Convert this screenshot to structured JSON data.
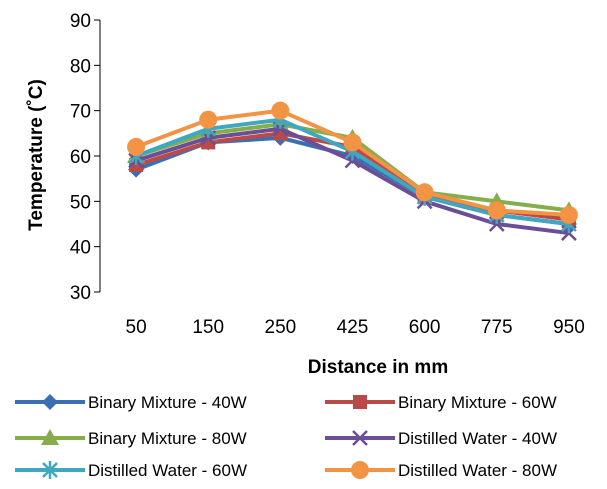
{
  "chart_data": {
    "type": "line",
    "title": "",
    "xlabel": "Distance in mm",
    "ylabel": "Temperature (˚C)",
    "categories": [
      "50",
      "150",
      "250",
      "425",
      "600",
      "775",
      "950"
    ],
    "ylim": [
      30,
      90
    ],
    "yticks": [
      30,
      40,
      50,
      60,
      70,
      80,
      90
    ],
    "grid": false,
    "legend_position": "bottom",
    "series": [
      {
        "name": "Binary Mixture  - 40W",
        "color": "#3a6fb5",
        "marker": "diamond",
        "values": [
          57,
          63,
          64,
          60,
          51,
          47,
          45
        ]
      },
      {
        "name": "Binary Mixture  - 60W",
        "color": "#b94a48",
        "marker": "square",
        "values": [
          58,
          63,
          65,
          62,
          51,
          48,
          46
        ]
      },
      {
        "name": "Binary Mixture  - 80W",
        "color": "#86ad4c",
        "marker": "triangle",
        "values": [
          60,
          65,
          67,
          64,
          52,
          50,
          48
        ]
      },
      {
        "name": "Distilled  Water - 40W",
        "color": "#6c4e95",
        "marker": "x",
        "values": [
          59,
          64,
          66,
          59,
          50,
          45,
          43
        ]
      },
      {
        "name": "Distilled  Water - 60W",
        "color": "#3fa7bf",
        "marker": "star",
        "values": [
          60,
          66,
          68,
          61,
          51,
          47,
          45
        ]
      },
      {
        "name": "Distilled  Water - 80W",
        "color": "#f29444",
        "marker": "circle",
        "values": [
          62,
          68,
          70,
          63,
          52,
          48,
          47
        ]
      }
    ]
  }
}
